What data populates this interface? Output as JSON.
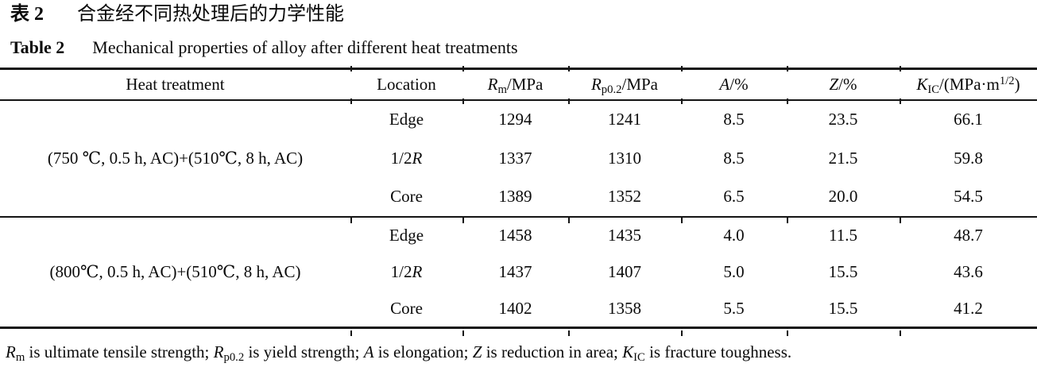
{
  "caption_cn": {
    "label": "表 2",
    "text": "合金经不同热处理后的力学性能"
  },
  "caption_en": {
    "label": "Table 2",
    "text": "Mechanical properties of alloy after different heat treatments"
  },
  "table": {
    "columns": [
      {
        "label": "Heat treatment"
      },
      {
        "label": "Location"
      },
      {
        "sym": "R",
        "sub": "m",
        "rest": "/MPa"
      },
      {
        "sym": "R",
        "sub": "p0.2",
        "rest": "/MPa"
      },
      {
        "sym": "A",
        "rest": "/%"
      },
      {
        "sym": "Z",
        "rest": "/%"
      },
      {
        "sym": "K",
        "sub": "IC",
        "rest": "/(MPa·m",
        "sup": "1/2",
        "close": ")"
      }
    ],
    "groups": [
      {
        "treatment": "(750 ℃, 0.5 h, AC)+(510℃, 8 h, AC)",
        "rows": [
          {
            "loc": "Edge",
            "rm": "1294",
            "rp02": "1241",
            "a": "8.5",
            "z": "23.5",
            "kic": "66.1"
          },
          {
            "loc": "1/2",
            "loc_it": "R",
            "rm": "1337",
            "rp02": "1310",
            "a": "8.5",
            "z": "21.5",
            "kic": "59.8"
          },
          {
            "loc": "Core",
            "rm": "1389",
            "rp02": "1352",
            "a": "6.5",
            "z": "20.0",
            "kic": "54.5"
          }
        ]
      },
      {
        "treatment": "(800℃, 0.5 h, AC)+(510℃, 8 h, AC)",
        "rows": [
          {
            "loc": "Edge",
            "rm": "1458",
            "rp02": "1435",
            "a": "4.0",
            "z": "11.5",
            "kic": "48.7"
          },
          {
            "loc": "1/2",
            "loc_it": "R",
            "rm": "1437",
            "rp02": "1407",
            "a": "5.0",
            "z": "15.5",
            "kic": "43.6"
          },
          {
            "loc": "Core",
            "rm": "1402",
            "rp02": "1358",
            "a": "5.5",
            "z": "15.5",
            "kic": "41.2"
          }
        ]
      }
    ]
  },
  "footnote": {
    "parts": [
      {
        "it": "R",
        "sub": "m",
        "text": " is ultimate tensile strength; "
      },
      {
        "it": "R",
        "sub": "p0.2",
        "text": " is yield strength; "
      },
      {
        "it": "A",
        "sub": "",
        "text": " is elongation; "
      },
      {
        "it": "Z",
        "sub": "",
        "text": " is reduction in area; "
      },
      {
        "it": "K",
        "sub": "IC",
        "text": " is fracture toughness."
      }
    ]
  }
}
